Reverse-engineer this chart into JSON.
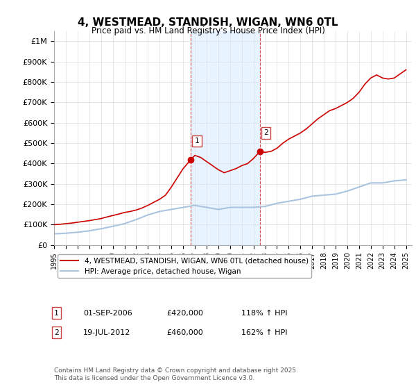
{
  "title": "4, WESTMEAD, STANDISH, WIGAN, WN6 0TL",
  "subtitle": "Price paid vs. HM Land Registry's House Price Index (HPI)",
  "xlabel": "",
  "ylabel": "",
  "ylim": [
    0,
    1050000
  ],
  "yticks": [
    0,
    100000,
    200000,
    300000,
    400000,
    500000,
    600000,
    700000,
    800000,
    900000,
    1000000
  ],
  "ytick_labels": [
    "£0",
    "£100K",
    "£200K",
    "£300K",
    "£400K",
    "£500K",
    "£600K",
    "£700K",
    "£800K",
    "£900K",
    "£1M"
  ],
  "background_color": "#ffffff",
  "plot_bg_color": "#ffffff",
  "grid_color": "#dddddd",
  "hpi_line_color": "#aac4e0",
  "price_line_color": "#cc0000",
  "sale1_date": 2006.67,
  "sale1_price": 420000,
  "sale1_label": "1",
  "sale2_date": 2012.55,
  "sale2_price": 460000,
  "sale2_label": "2",
  "shade_start": 2006.67,
  "shade_end": 2012.55,
  "legend_property": "4, WESTMEAD, STANDISH, WIGAN, WN6 0TL (detached house)",
  "legend_hpi": "HPI: Average price, detached house, Wigan",
  "table_rows": [
    {
      "num": "1",
      "date": "01-SEP-2006",
      "price": "£420,000",
      "hpi": "118% ↑ HPI"
    },
    {
      "num": "2",
      "date": "19-JUL-2012",
      "price": "£460,000",
      "hpi": "162% ↑ HPI"
    }
  ],
  "footer": "Contains HM Land Registry data © Crown copyright and database right 2025.\nThis data is licensed under the Open Government Licence v3.0.",
  "xmin": 1995,
  "xmax": 2025.5,
  "hpi_data_x": [
    1995,
    1996,
    1997,
    1998,
    1999,
    2000,
    2001,
    2002,
    2003,
    2004,
    2005,
    2006,
    2007,
    2008,
    2009,
    2010,
    2011,
    2012,
    2013,
    2014,
    2015,
    2016,
    2017,
    2018,
    2019,
    2020,
    2021,
    2022,
    2023,
    2024,
    2025
  ],
  "hpi_data_y": [
    55000,
    58000,
    63000,
    70000,
    80000,
    92000,
    105000,
    125000,
    148000,
    165000,
    175000,
    185000,
    195000,
    185000,
    175000,
    185000,
    185000,
    185000,
    190000,
    205000,
    215000,
    225000,
    240000,
    245000,
    250000,
    265000,
    285000,
    305000,
    305000,
    315000,
    320000
  ],
  "price_data_x": [
    1995,
    1995.5,
    1996,
    1996.5,
    1997,
    1997.5,
    1998,
    1998.5,
    1999,
    1999.5,
    2000,
    2000.5,
    2001,
    2001.5,
    2002,
    2002.5,
    2003,
    2003.5,
    2004,
    2004.5,
    2005,
    2005.5,
    2006,
    2006.67,
    2007,
    2007.5,
    2008,
    2008.5,
    2009,
    2009.5,
    2010,
    2010.5,
    2011,
    2011.5,
    2012,
    2012.55,
    2013,
    2013.5,
    2014,
    2014.5,
    2015,
    2015.5,
    2016,
    2016.5,
    2017,
    2017.5,
    2018,
    2018.5,
    2019,
    2019.5,
    2020,
    2020.5,
    2021,
    2021.5,
    2022,
    2022.5,
    2023,
    2023.5,
    2024,
    2024.5,
    2025
  ],
  "price_data_y": [
    100000,
    102000,
    105000,
    108000,
    112000,
    116000,
    120000,
    125000,
    130000,
    138000,
    145000,
    152000,
    160000,
    165000,
    172000,
    182000,
    195000,
    210000,
    225000,
    245000,
    285000,
    330000,
    375000,
    420000,
    440000,
    430000,
    410000,
    390000,
    370000,
    355000,
    365000,
    375000,
    390000,
    400000,
    425000,
    460000,
    455000,
    460000,
    475000,
    500000,
    520000,
    535000,
    550000,
    570000,
    595000,
    620000,
    640000,
    660000,
    670000,
    685000,
    700000,
    720000,
    750000,
    790000,
    820000,
    835000,
    820000,
    815000,
    820000,
    840000,
    860000
  ]
}
